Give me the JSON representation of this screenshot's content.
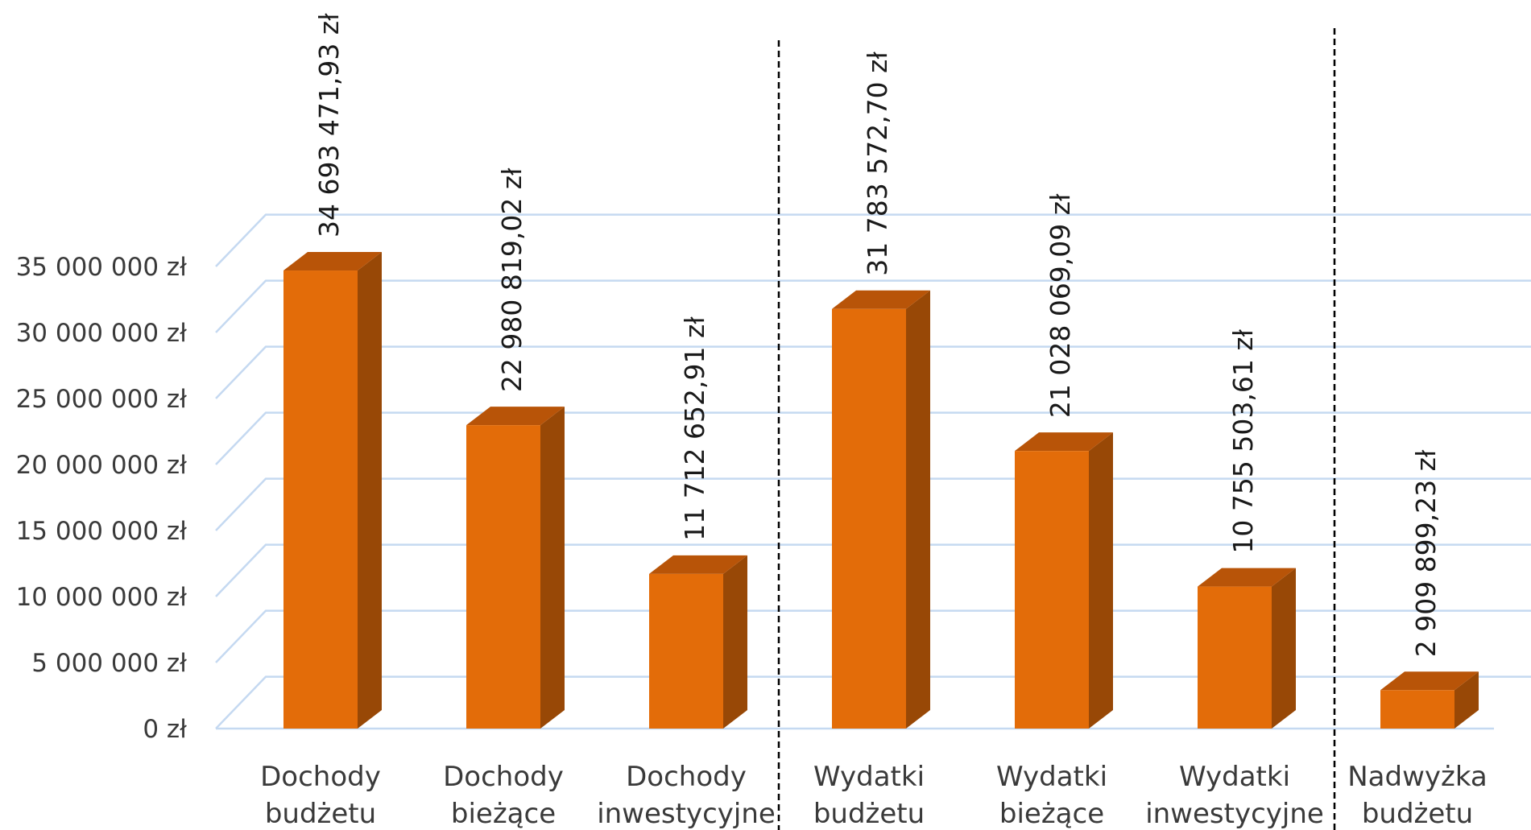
{
  "chart_data": {
    "type": "bar",
    "three_d": true,
    "categories": [
      [
        "Dochody",
        "budżetu"
      ],
      [
        "Dochody",
        "bieżące"
      ],
      [
        "Dochody",
        "inwestycyjne"
      ],
      [
        "Wydatki",
        "budżetu"
      ],
      [
        "Wydatki",
        "bieżące"
      ],
      [
        "Wydatki",
        "inwestycyjne"
      ],
      [
        "Nadwyżka",
        "budżetu"
      ]
    ],
    "values": [
      34693471.93,
      22980819.02,
      11712652.91,
      31783572.7,
      21028069.09,
      10755503.61,
      2909899.23
    ],
    "data_labels": [
      "34 693 471,93 zł",
      "22 980 819,02 zł",
      "11 712 652,91 zł",
      "31 783 572,70 zł",
      "21 028 069,09 zł",
      "10 755 503,61 zł",
      "2 909 899,23 zł"
    ],
    "ylim": [
      0,
      35000000
    ],
    "y_ticks": [
      0,
      5000000,
      10000000,
      15000000,
      20000000,
      25000000,
      30000000,
      35000000
    ],
    "y_tick_labels": [
      "0 zł",
      "5 000 000 zł",
      "10 000 000 zł",
      "15 000 000 zł",
      "20 000 000 zł",
      "25 000 000 zł",
      "30 000 000 zł",
      "35 000 000 zł"
    ],
    "grid": true,
    "group_separators_after": [
      3,
      6
    ],
    "colors": {
      "bar_front": "#E36C09",
      "bar_top": "#B85408",
      "bar_side": "#984806",
      "grid": "#C5D9F1",
      "separator": "#000000"
    }
  }
}
